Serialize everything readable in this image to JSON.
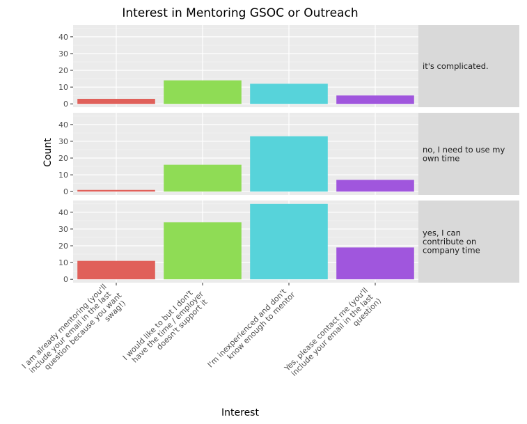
{
  "chart_data": {
    "type": "bar",
    "title": "Interest in Mentoring GSOC or Outreach",
    "xlabel": "Interest",
    "ylabel": "Count",
    "ylim": [
      -2,
      47
    ],
    "yticks": [
      0,
      10,
      20,
      30,
      40
    ],
    "grid": true,
    "categories": [
      "I am already mentoring (you'll include your email in the last question because you want swag!)",
      "I would like to but I don't have the time / employer doesn't support it",
      "I'm inexperienced and don't know enough to mentor",
      "Yes, please contact me (you'll include your email in the last question)"
    ],
    "category_tick_lines": [
      [
        "I am already mentoring (you'll",
        "include your email in the last",
        "question because you want",
        "swag!)"
      ],
      [
        "I would like to but I don't",
        "have the time / employer",
        "doesn't support it"
      ],
      [
        "I'm inexperienced and don't",
        "know enough to mentor"
      ],
      [
        "Yes, please contact me (you'll",
        "include your email in the last",
        "question)"
      ]
    ],
    "colors": [
      "#e0605a",
      "#8fdc55",
      "#57d3da",
      "#a056dd"
    ],
    "facets": [
      {
        "label_lines": [
          "it's complicated."
        ],
        "values": [
          3,
          14,
          12,
          5
        ]
      },
      {
        "label_lines": [
          "no, I need to use my",
          "own time"
        ],
        "values": [
          1,
          16,
          33,
          7
        ]
      },
      {
        "label_lines": [
          "yes, I can",
          "contribute on",
          "company time"
        ],
        "values": [
          11,
          34,
          45,
          19
        ]
      }
    ]
  }
}
